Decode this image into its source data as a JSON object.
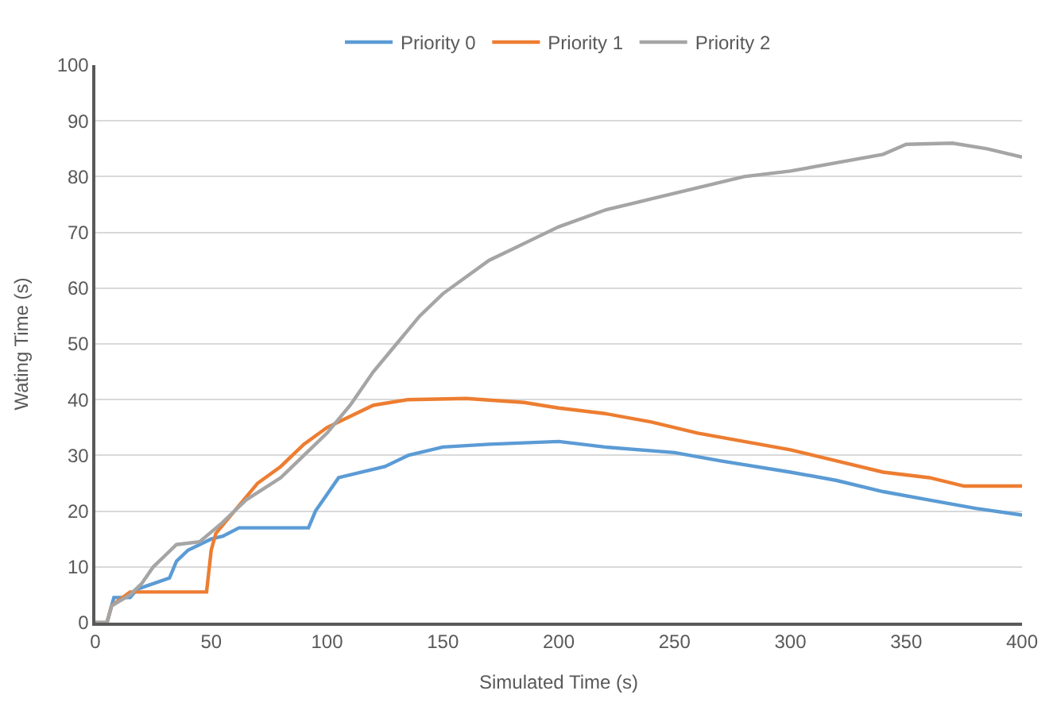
{
  "chart_data": {
    "type": "line",
    "xlabel": "Simulated Time (s)",
    "ylabel": "Wating Time (s)",
    "xlim": [
      0,
      400
    ],
    "xticks": [
      0,
      50,
      100,
      150,
      200,
      250,
      300,
      350,
      400
    ],
    "ylim": [
      0,
      100
    ],
    "yticks": [
      0,
      10,
      20,
      30,
      40,
      50,
      60,
      70,
      80,
      90,
      100
    ],
    "grid": "y",
    "legend": "top",
    "marker": "none",
    "line_style": "solid",
    "series": [
      {
        "name": "Priority 0",
        "color": "#5b9bd5",
        "x": [
          0,
          5,
          7,
          8,
          15,
          18,
          25,
          32,
          35,
          40,
          45,
          50,
          55,
          62,
          80,
          92,
          95,
          100,
          105,
          115,
          125,
          135,
          150,
          170,
          200,
          220,
          250,
          270,
          300,
          320,
          340,
          360,
          380,
          400
        ],
        "values": [
          0,
          0,
          3,
          4.5,
          4.5,
          6,
          7,
          8,
          11,
          13,
          14,
          15,
          15.5,
          17,
          17,
          17,
          20,
          23,
          26,
          27,
          28,
          30,
          31.5,
          32,
          32.5,
          31.5,
          30.5,
          29,
          27,
          25.5,
          23.5,
          22,
          20.5,
          19.3
        ]
      },
      {
        "name": "Priority 1",
        "color": "#ed7d31",
        "x": [
          0,
          5,
          7,
          10,
          15,
          48,
          50,
          52,
          60,
          70,
          80,
          90,
          100,
          110,
          120,
          135,
          160,
          185,
          200,
          220,
          240,
          260,
          280,
          300,
          320,
          340,
          360,
          375,
          400
        ],
        "values": [
          0,
          0,
          3,
          4,
          5.5,
          5.5,
          13,
          16,
          20,
          25,
          28,
          32,
          35,
          37,
          39,
          40,
          40.2,
          39.5,
          38.5,
          37.5,
          36,
          34,
          32.5,
          31,
          29,
          27,
          26,
          24.5,
          24.5
        ]
      },
      {
        "name": "Priority 2",
        "color": "#a5a5a5",
        "x": [
          0,
          5,
          7,
          15,
          20,
          25,
          30,
          35,
          45,
          55,
          65,
          80,
          90,
          100,
          110,
          120,
          130,
          140,
          150,
          160,
          170,
          180,
          190,
          200,
          220,
          240,
          260,
          280,
          300,
          320,
          340,
          350,
          370,
          385,
          400
        ],
        "values": [
          0,
          0,
          3,
          5,
          7,
          10,
          12,
          14,
          14.5,
          18,
          22,
          26,
          30,
          34,
          39,
          45,
          50,
          55,
          59,
          62,
          65,
          67,
          69,
          71,
          74,
          76,
          78,
          80,
          81,
          82.5,
          84,
          85.8,
          86,
          85,
          83.5
        ]
      }
    ]
  }
}
